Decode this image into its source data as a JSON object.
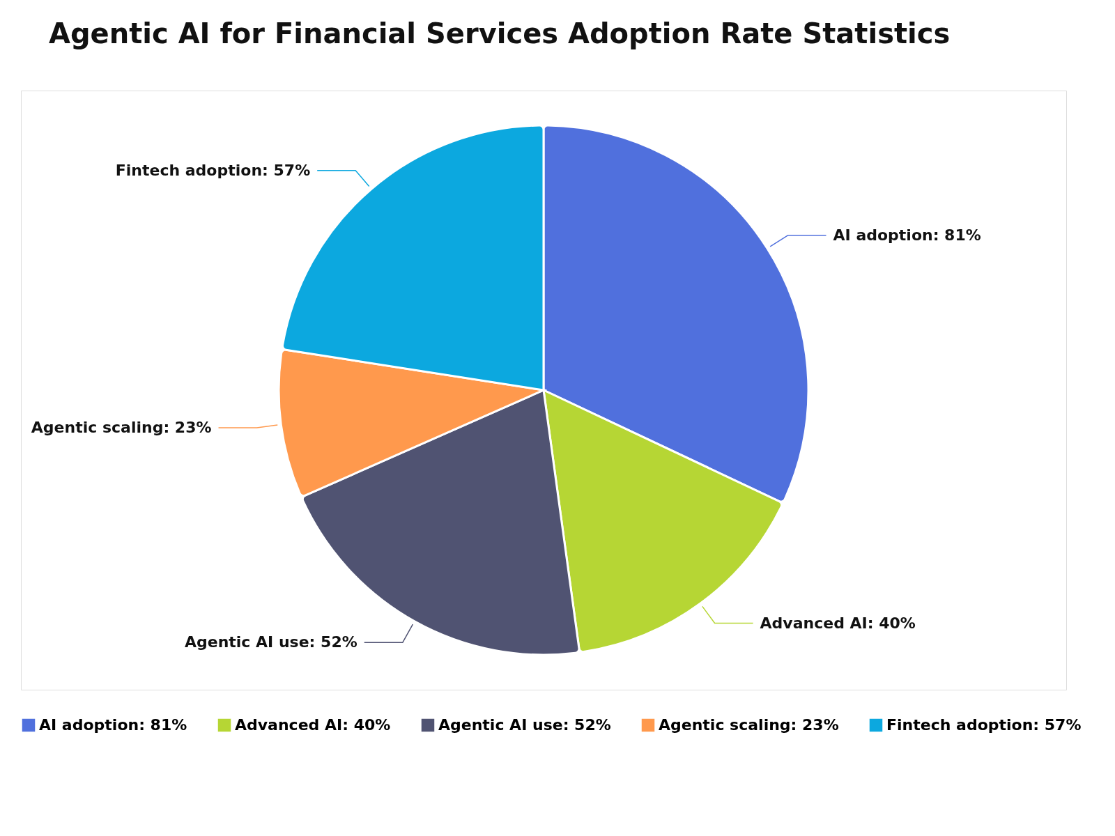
{
  "chart_data": {
    "type": "pie",
    "title": "Agentic AI for Financial Services Adoption Rate Statistics",
    "categories": [
      "AI adoption",
      "Advanced AI",
      "Agentic AI use",
      "Agentic scaling",
      "Fintech adoption"
    ],
    "values": [
      81,
      40,
      52,
      23,
      57
    ],
    "value_labels": [
      "81%",
      "40%",
      "52%",
      "23%",
      "57%"
    ],
    "colors": [
      "#5070dd",
      "#b6d634",
      "#505372",
      "#ff994d",
      "#0ca8df"
    ],
    "legend": "bottom"
  }
}
